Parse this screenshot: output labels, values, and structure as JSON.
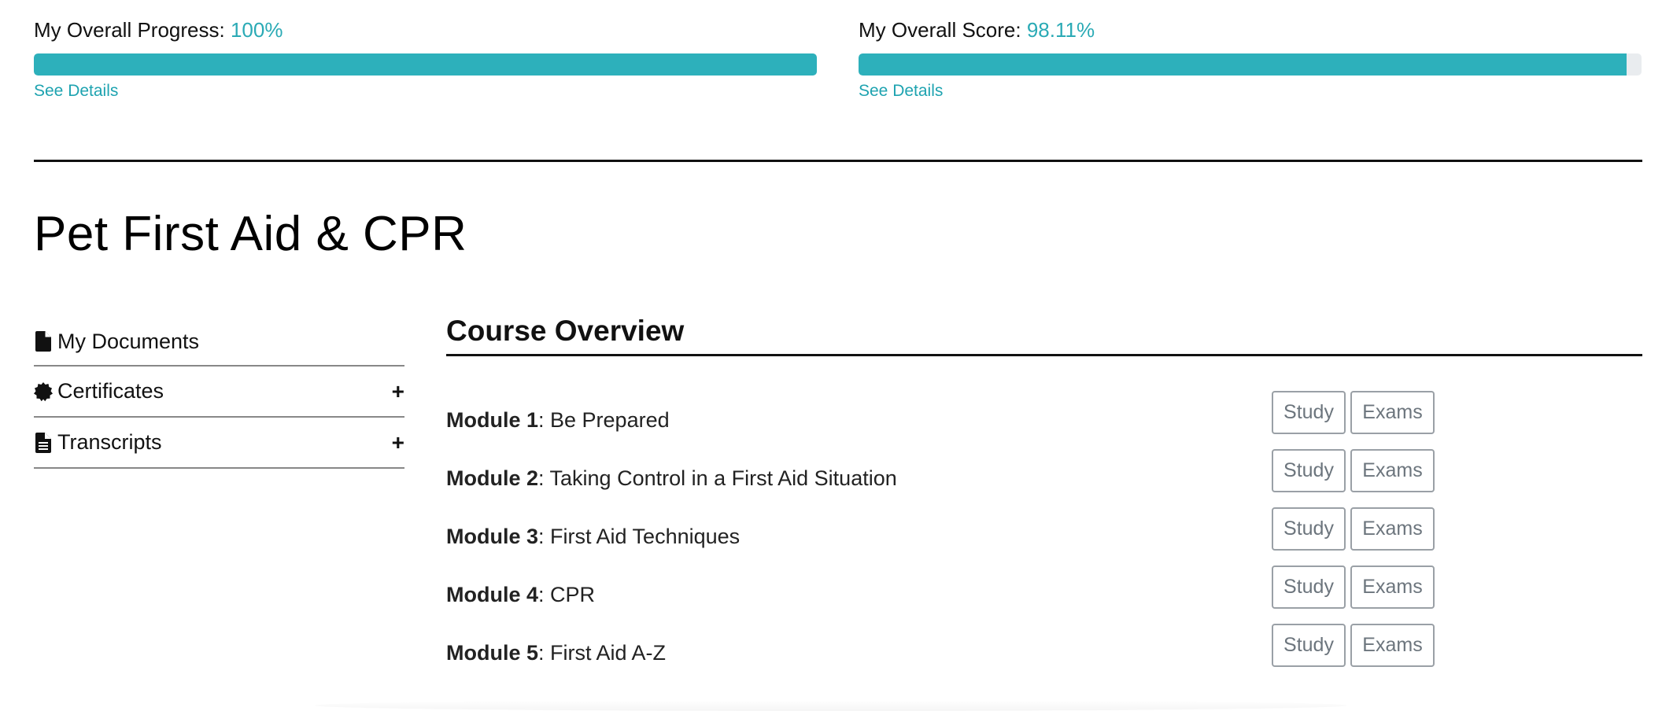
{
  "progress": {
    "label": "My Overall Progress:",
    "value_text": "100%",
    "fraction": 1.0,
    "details_link": "See Details"
  },
  "score": {
    "label": "My Overall Score:",
    "value_text": "98.11%",
    "fraction": 0.9811,
    "details_link": "See Details"
  },
  "course": {
    "title": "Pet First Aid & CPR"
  },
  "sidebar": {
    "items": [
      {
        "label": "My Documents",
        "icon": "file-icon",
        "expandable": false
      },
      {
        "label": "Certificates",
        "icon": "certificate-icon",
        "expandable": true,
        "toggle": "+"
      },
      {
        "label": "Transcripts",
        "icon": "file-text-icon",
        "expandable": true,
        "toggle": "+"
      }
    ]
  },
  "overview": {
    "title": "Course Overview",
    "study_label": "Study",
    "exams_label": "Exams",
    "modules": [
      {
        "number": "Module 1",
        "name": ": Be Prepared"
      },
      {
        "number": "Module 2",
        "name": ": Taking Control in a First Aid Situation"
      },
      {
        "number": "Module 3",
        "name": ": First Aid Techniques"
      },
      {
        "number": "Module 4",
        "name": ": CPR"
      },
      {
        "number": "Module 5",
        "name": ": First Aid A-Z"
      }
    ]
  },
  "colors": {
    "accent": "#2aaab5",
    "bar_fill": "#2db0bb",
    "bar_track": "#e9ecef",
    "button_border": "#9aa0a6",
    "button_text": "#6c757d"
  }
}
